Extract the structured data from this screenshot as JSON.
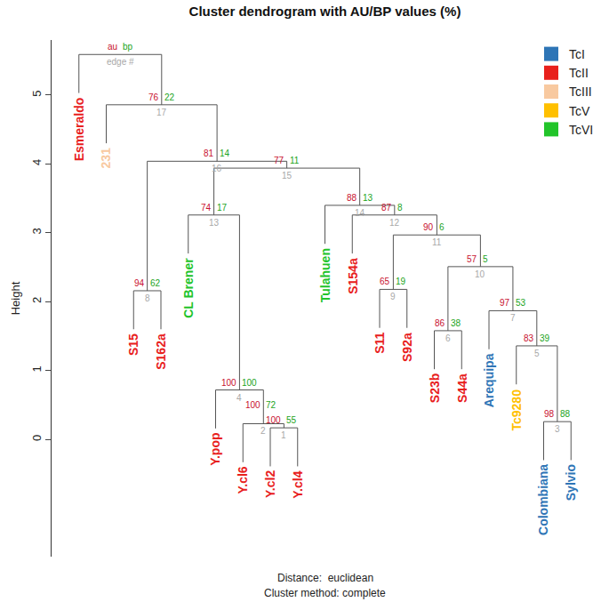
{
  "chart_data": {
    "type": "dendrogram",
    "title": "Cluster dendrogram with AU/BP values (%)",
    "y_label": "Height",
    "footer": [
      "Distance:  euclidean",
      "Cluster method: complete"
    ],
    "ylim": [
      -1.7,
      5.8
    ],
    "yticks": [
      0,
      1,
      2,
      3,
      4,
      5
    ],
    "xlim": [
      0,
      20
    ],
    "grid": false,
    "tick_labels": "y",
    "legend": "upper right",
    "series": [
      {
        "name": "TcI",
        "color": "#2e75b6"
      },
      {
        "name": "TcII",
        "color": "#e8201c"
      },
      {
        "name": "TcIII",
        "color": "#f8c9a0"
      },
      {
        "name": "TcV",
        "color": "#ffc000"
      },
      {
        "name": "TcVI",
        "color": "#22c42a"
      }
    ],
    "leaves": [
      {
        "name": "Esmeraldo",
        "group": "TcII"
      },
      {
        "name": "231",
        "group": "TcIII"
      },
      {
        "name": "S15",
        "group": "TcII"
      },
      {
        "name": "S162a",
        "group": "TcII"
      },
      {
        "name": "CL Brener",
        "group": "TcVI"
      },
      {
        "name": "Y.pop",
        "group": "TcII"
      },
      {
        "name": "Y.cl6",
        "group": "TcII"
      },
      {
        "name": "Y.cl2",
        "group": "TcII"
      },
      {
        "name": "Y.cl4",
        "group": "TcII"
      },
      {
        "name": "Tulahuen",
        "group": "TcVI"
      },
      {
        "name": "S154a",
        "group": "TcII"
      },
      {
        "name": "S11",
        "group": "TcII"
      },
      {
        "name": "S92a",
        "group": "TcII"
      },
      {
        "name": "S23b",
        "group": "TcII"
      },
      {
        "name": "S44a",
        "group": "TcII"
      },
      {
        "name": "Arequipa",
        "group": "TcI"
      },
      {
        "name": "Tc9280",
        "group": "TcV"
      },
      {
        "name": "Colombiana",
        "group": "TcI"
      },
      {
        "name": "Sylvio",
        "group": "TcI"
      }
    ],
    "merges": [
      {
        "edge": 1,
        "left": "Y.cl2",
        "right": "Y.cl4",
        "height": 0.17,
        "au": 100,
        "bp": 55
      },
      {
        "edge": 2,
        "left": "Y.cl6",
        "right": 1,
        "height": 0.23,
        "au": 100,
        "bp": 72
      },
      {
        "edge": 3,
        "left": "Colombiana",
        "right": "Sylvio",
        "height": 0.26,
        "au": 98,
        "bp": 88
      },
      {
        "edge": 4,
        "left": "Y.pop",
        "right": 2,
        "height": 0.72,
        "au": 100,
        "bp": 100
      },
      {
        "edge": 5,
        "left": "Tc9280",
        "right": 3,
        "height": 1.36,
        "au": 83,
        "bp": 39
      },
      {
        "edge": 6,
        "left": "S23b",
        "right": "S44a",
        "height": 1.58,
        "au": 86,
        "bp": 38
      },
      {
        "edge": 7,
        "left": "Arequipa",
        "right": 5,
        "height": 1.87,
        "au": 97,
        "bp": 53
      },
      {
        "edge": 8,
        "left": "S15",
        "right": "S162a",
        "height": 2.16,
        "au": 94,
        "bp": 62
      },
      {
        "edge": 9,
        "left": "S11",
        "right": "S92a",
        "height": 2.18,
        "au": 65,
        "bp": 19
      },
      {
        "edge": 10,
        "left": 6,
        "right": 7,
        "height": 2.51,
        "au": 57,
        "bp": 5
      },
      {
        "edge": 11,
        "left": 9,
        "right": 10,
        "height": 2.97,
        "au": 90,
        "bp": 6
      },
      {
        "edge": 12,
        "left": "S154a",
        "right": 11,
        "height": 3.26,
        "au": 87,
        "bp": 8
      },
      {
        "edge": 13,
        "left": "CL Brener",
        "right": 4,
        "height": 3.26,
        "au": 74,
        "bp": 17
      },
      {
        "edge": 14,
        "left": "Tulahuen",
        "right": 12,
        "height": 3.4,
        "au": 88,
        "bp": 13
      },
      {
        "edge": 15,
        "left": 13,
        "right": 14,
        "height": 3.94,
        "au": 77,
        "bp": 11
      },
      {
        "edge": 16,
        "left": 8,
        "right": 15,
        "height": 4.04,
        "au": 81,
        "bp": 14
      },
      {
        "edge": 17,
        "left": "231",
        "right": 16,
        "height": 4.86,
        "au": 76,
        "bp": 22
      }
    ],
    "root": {
      "left": "Esmeraldo",
      "right": 17,
      "height": 5.59
    },
    "header": {
      "au": "au",
      "bp": "bp",
      "edge": "edge #"
    }
  }
}
